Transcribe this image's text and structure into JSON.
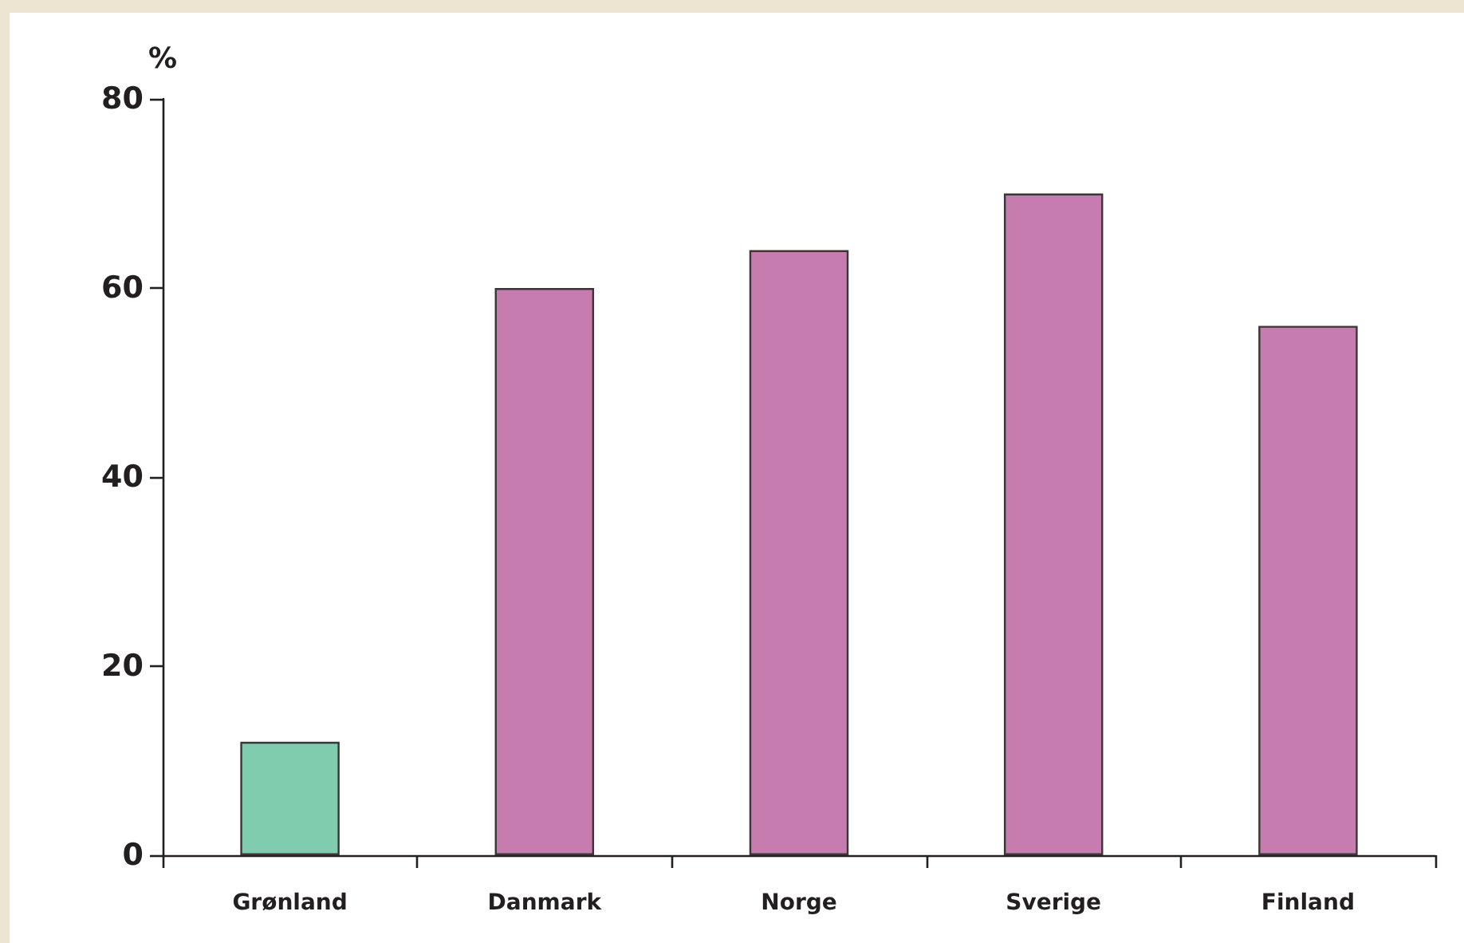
{
  "chart_data": {
    "type": "bar",
    "ylabel": "%",
    "categories": [
      "Grønland",
      "Danmark",
      "Norge",
      "Sverige",
      "Finland"
    ],
    "values": [
      12,
      60,
      64,
      70,
      56
    ],
    "colors": [
      "#80ccae",
      "#c67caf",
      "#c67caf",
      "#c67caf",
      "#c67caf"
    ],
    "ylim": [
      0,
      80
    ],
    "yticks": [
      0,
      20,
      40,
      60,
      80
    ]
  }
}
